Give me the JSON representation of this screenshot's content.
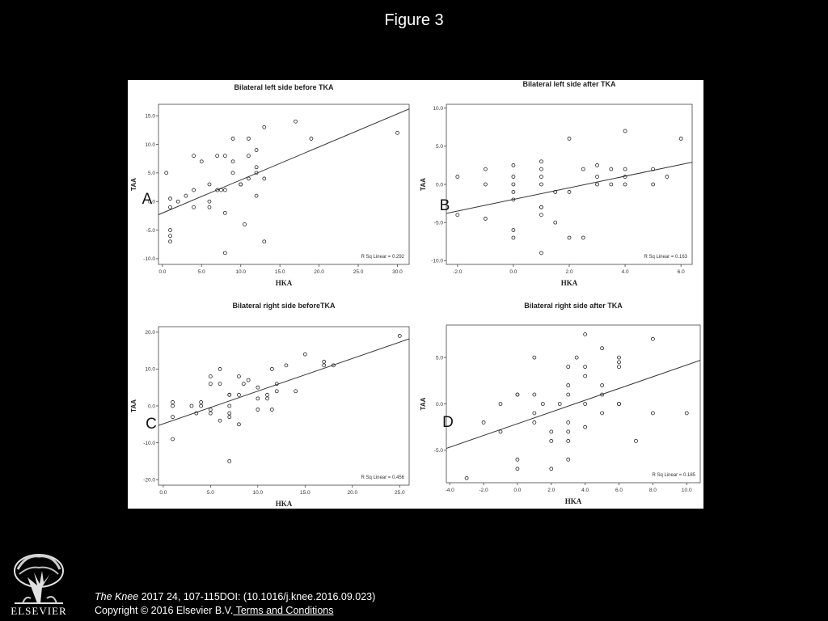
{
  "page": {
    "title": "Figure 3",
    "citation_journal": "The Knee",
    "citation_rest": " 2017 24, 107-115DOI: (10.1016/j.knee.2016.09.023)",
    "copyright": "Copyright © 2016 Elsevier B.V.",
    "terms_link": " Terms and Conditions",
    "logo_text": "ELSEVIER"
  },
  "chart_data": [
    {
      "type": "scatter",
      "panel_label": "A",
      "title": "Bilateral left side before TKA",
      "xlabel": "HKA",
      "ylabel": "TAA",
      "xlim": [
        -0.5,
        31.5
      ],
      "ylim": [
        -11,
        17
      ],
      "xticks": [
        0,
        5,
        10,
        15,
        20,
        25,
        30
      ],
      "xtick_labels": [
        "0.0",
        "5.0",
        "10.0",
        "15.0",
        "20.0",
        "25.0",
        "30.0"
      ],
      "yticks": [
        -10,
        -5,
        0,
        5,
        10,
        15
      ],
      "ytick_labels": [
        "-10.0",
        "-5.0",
        "0.0",
        "5.0",
        "10.0",
        "15.0"
      ],
      "annotation": "R Sq Linear = 0.292",
      "fit_line": {
        "x": [
          -0.5,
          31.5
        ],
        "y": [
          -2.3,
          16.2
        ]
      },
      "points": [
        [
          0.5,
          5
        ],
        [
          1,
          0.5
        ],
        [
          1,
          -1
        ],
        [
          1,
          -5
        ],
        [
          1,
          -6
        ],
        [
          1,
          -7
        ],
        [
          2,
          0
        ],
        [
          3,
          1
        ],
        [
          4,
          2
        ],
        [
          4,
          8
        ],
        [
          4,
          -1
        ],
        [
          5,
          7
        ],
        [
          6,
          3
        ],
        [
          6,
          0
        ],
        [
          6,
          -1
        ],
        [
          7,
          2
        ],
        [
          7,
          8
        ],
        [
          7.5,
          2
        ],
        [
          8,
          8
        ],
        [
          8,
          2
        ],
        [
          8,
          -2
        ],
        [
          8,
          -9
        ],
        [
          9,
          5
        ],
        [
          9,
          7
        ],
        [
          9,
          11
        ],
        [
          10,
          3
        ],
        [
          10,
          3
        ],
        [
          10.5,
          -4
        ],
        [
          11,
          8
        ],
        [
          11,
          11
        ],
        [
          11,
          4
        ],
        [
          12,
          9
        ],
        [
          12,
          6
        ],
        [
          12,
          5
        ],
        [
          12,
          1
        ],
        [
          13,
          4
        ],
        [
          13,
          13
        ],
        [
          13,
          -7
        ],
        [
          17,
          14
        ],
        [
          19,
          11
        ],
        [
          30,
          12
        ]
      ]
    },
    {
      "type": "scatter",
      "panel_label": "B",
      "title": "Bilateral left side after TKA",
      "xlabel": "HKA",
      "ylabel": "TAA",
      "xlim": [
        -2.4,
        6.4
      ],
      "ylim": [
        -10.5,
        10.5
      ],
      "xticks": [
        -2,
        0,
        2,
        4,
        6
      ],
      "xtick_labels": [
        "-2.0",
        "0.0",
        "2.0",
        "4.0",
        "6.0"
      ],
      "yticks": [
        -10,
        -5,
        0,
        5,
        10
      ],
      "ytick_labels": [
        "-10.0",
        "-5.0",
        "0.0",
        "5.0",
        "10.0"
      ],
      "annotation": "R Sq Linear = 0.163",
      "fit_line": {
        "x": [
          -2.4,
          6.4
        ],
        "y": [
          -3.8,
          2.9
        ]
      },
      "points": [
        [
          -2,
          1
        ],
        [
          -2,
          -4
        ],
        [
          -1,
          2
        ],
        [
          -1,
          0
        ],
        [
          -1,
          -4.5
        ],
        [
          0,
          2.5
        ],
        [
          0,
          1
        ],
        [
          0,
          0
        ],
        [
          0,
          -1
        ],
        [
          0,
          -2
        ],
        [
          0,
          -6
        ],
        [
          0,
          -7
        ],
        [
          1,
          3
        ],
        [
          1,
          2
        ],
        [
          1,
          1
        ],
        [
          1,
          0
        ],
        [
          1,
          -3
        ],
        [
          1,
          -3
        ],
        [
          1,
          -4
        ],
        [
          1,
          -9
        ],
        [
          1.5,
          -1
        ],
        [
          1.5,
          -5
        ],
        [
          2,
          6
        ],
        [
          2,
          -1
        ],
        [
          2,
          -7
        ],
        [
          2.5,
          2
        ],
        [
          2.5,
          -7
        ],
        [
          3,
          2.5
        ],
        [
          3,
          1
        ],
        [
          3,
          0
        ],
        [
          3.5,
          2
        ],
        [
          3.5,
          0
        ],
        [
          4,
          7
        ],
        [
          4,
          2
        ],
        [
          4,
          1
        ],
        [
          4,
          0
        ],
        [
          5,
          2
        ],
        [
          5,
          0
        ],
        [
          5.5,
          1
        ],
        [
          6,
          6
        ]
      ]
    },
    {
      "type": "scatter",
      "panel_label": "C",
      "title": "Bilateral right side beforeTKA",
      "xlabel": "HKA",
      "ylabel": "TAA",
      "xlim": [
        -0.5,
        26
      ],
      "ylim": [
        -21.5,
        21.5
      ],
      "xticks": [
        0,
        5,
        10,
        15,
        20,
        25
      ],
      "xtick_labels": [
        "0.0",
        "5.0",
        "10.0",
        "15.0",
        "20.0",
        "25.0"
      ],
      "yticks": [
        -20,
        -10,
        0,
        10,
        20
      ],
      "ytick_labels": [
        "-20.0",
        "-10.0",
        "0.0",
        "10.0",
        "20.0"
      ],
      "annotation": "R Sq Linear = 0.456",
      "fit_line": {
        "x": [
          -0.5,
          26
        ],
        "y": [
          -5.3,
          18.2
        ]
      },
      "points": [
        [
          1,
          1
        ],
        [
          1,
          0
        ],
        [
          1,
          -3
        ],
        [
          1,
          -9
        ],
        [
          3,
          0
        ],
        [
          3.5,
          -2
        ],
        [
          4,
          0
        ],
        [
          4,
          1
        ],
        [
          5,
          -1
        ],
        [
          5,
          -2
        ],
        [
          5,
          6
        ],
        [
          5,
          8
        ],
        [
          6,
          10
        ],
        [
          6,
          6
        ],
        [
          6,
          -4
        ],
        [
          7,
          3
        ],
        [
          7,
          3
        ],
        [
          7,
          0
        ],
        [
          7,
          -2
        ],
        [
          7,
          -3
        ],
        [
          7,
          -15
        ],
        [
          8,
          8
        ],
        [
          8,
          3
        ],
        [
          8,
          -5
        ],
        [
          8.5,
          6
        ],
        [
          9,
          7
        ],
        [
          10,
          5
        ],
        [
          10,
          2
        ],
        [
          10,
          -1
        ],
        [
          11,
          2
        ],
        [
          11,
          3
        ],
        [
          11.5,
          10
        ],
        [
          11.5,
          -1
        ],
        [
          12,
          6
        ],
        [
          12,
          4
        ],
        [
          13,
          11
        ],
        [
          14,
          4
        ],
        [
          15,
          14
        ],
        [
          17,
          12
        ],
        [
          17,
          11
        ],
        [
          18,
          11
        ],
        [
          25,
          19
        ]
      ]
    },
    {
      "type": "scatter",
      "panel_label": "D",
      "title": "Bilateral right side after TKA",
      "xlabel": "HKA",
      "ylabel": "TAA",
      "xlim": [
        -4.2,
        10.8
      ],
      "ylim": [
        -8.5,
        8.5
      ],
      "xticks": [
        -4,
        -2,
        0,
        2,
        4,
        6,
        8,
        10
      ],
      "xtick_labels": [
        "-4.0",
        "-2.0",
        "0.0",
        "2.0",
        "4.0",
        "6.0",
        "8.0",
        "10.0"
      ],
      "yticks": [
        -5,
        0,
        5
      ],
      "ytick_labels": [
        "-5.0",
        "0.0",
        "5.0"
      ],
      "annotation": "R Sq Linear = 0.185",
      "fit_line": {
        "x": [
          -4.2,
          10.8
        ],
        "y": [
          -4.8,
          4.7
        ]
      },
      "points": [
        [
          -3,
          -8
        ],
        [
          -2,
          -2
        ],
        [
          -1,
          0
        ],
        [
          -1,
          -3
        ],
        [
          0,
          1
        ],
        [
          0,
          1
        ],
        [
          0,
          -6
        ],
        [
          0,
          -7
        ],
        [
          1,
          5
        ],
        [
          1,
          1
        ],
        [
          1,
          -1
        ],
        [
          1,
          -2
        ],
        [
          1.5,
          0
        ],
        [
          2,
          -3
        ],
        [
          2,
          -4
        ],
        [
          2,
          -7
        ],
        [
          2.5,
          0
        ],
        [
          3,
          4
        ],
        [
          3,
          2
        ],
        [
          3,
          1
        ],
        [
          3,
          -2
        ],
        [
          3,
          -3
        ],
        [
          3,
          -4
        ],
        [
          3,
          -6
        ],
        [
          3.5,
          5
        ],
        [
          4,
          7.5
        ],
        [
          4,
          4
        ],
        [
          4,
          3
        ],
        [
          4,
          0
        ],
        [
          4,
          -2.5
        ],
        [
          5,
          6
        ],
        [
          5,
          2
        ],
        [
          5,
          1
        ],
        [
          5,
          -1
        ],
        [
          6,
          5
        ],
        [
          6,
          4.5
        ],
        [
          6,
          4
        ],
        [
          6,
          0
        ],
        [
          6,
          0
        ],
        [
          7,
          -4
        ],
        [
          8,
          7
        ],
        [
          8,
          -1
        ],
        [
          10,
          -1
        ]
      ]
    }
  ]
}
